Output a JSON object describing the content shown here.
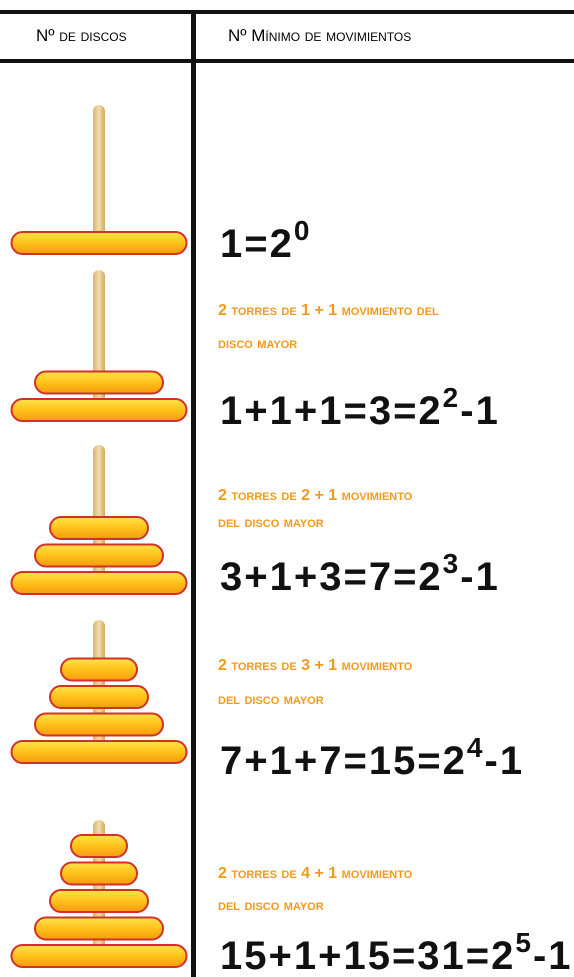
{
  "header": {
    "col1": "Nº de discos",
    "col2": "Nº Mínimo de movimientos"
  },
  "rows": [
    {
      "formula": {
        "base": "1=2",
        "sup": "0"
      }
    },
    {
      "note": [
        "2 torres de 1 + 1 movimiento del",
        "disco mayor"
      ],
      "formula": {
        "base": "1+1+1=3=2",
        "sup": "2",
        "tail": "-1"
      }
    },
    {
      "note": [
        "2 torres de 2 + 1 movimiento",
        "del disco mayor"
      ],
      "formula": {
        "base": "3+1+3=7=2",
        "sup": "3",
        "tail": "-1"
      }
    },
    {
      "note": [
        "2 torres de 3 + 1 movimiento",
        "del disco mayor"
      ],
      "formula": {
        "base": "7+1+7=15=2",
        "sup": "4",
        "tail": "-1"
      }
    },
    {
      "note": [
        "2 torres de 4 + 1 movimiento",
        "del disco mayor"
      ],
      "formula": {
        "base": "15+1+15=31=2",
        "sup": "5",
        "tail": "-1"
      }
    }
  ]
}
